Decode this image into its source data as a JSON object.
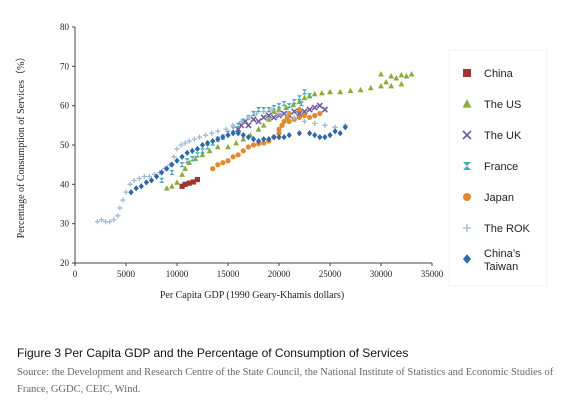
{
  "figure": {
    "caption": "Figure 3 Per Capita GDP and the Percentage of Consumption of Services",
    "source": "Source: the Development and Research Centre of the State Council, the National Institute of Statistics and Economic Studies of France, GGDC, CEIC, Wind."
  },
  "chart_data": {
    "type": "scatter",
    "title": "",
    "xlabel": "Per Capita GDP (1990 Geary-Khamis dollars)",
    "ylabel": "Percentage of Consumption of Services（%）",
    "xlim": [
      0,
      35000
    ],
    "ylim": [
      20,
      80
    ],
    "xticks": [
      "0",
      "5000",
      "10000",
      "15000",
      "20000",
      "25000",
      "30000",
      "35000"
    ],
    "yticks": [
      "20",
      "30",
      "40",
      "50",
      "60",
      "70",
      "80"
    ],
    "grid": false,
    "legend_position": "right",
    "series": [
      {
        "name": "China",
        "marker": "square",
        "color": "#a0352f",
        "points": [
          [
            10500,
            39.5
          ],
          [
            10800,
            40.0
          ],
          [
            11200,
            40.3
          ],
          [
            11600,
            40.6
          ],
          [
            12000,
            41.2
          ]
        ]
      },
      {
        "name": "The US",
        "marker": "triangle",
        "color": "#8cab3c",
        "points": [
          [
            9000,
            39
          ],
          [
            9500,
            39.5
          ],
          [
            10000,
            40.5
          ],
          [
            10500,
            42.5
          ],
          [
            10800,
            44
          ],
          [
            11200,
            45.5
          ],
          [
            11800,
            46.5
          ],
          [
            12500,
            47.5
          ],
          [
            13200,
            48.5
          ],
          [
            14000,
            49.5
          ],
          [
            15000,
            49.5
          ],
          [
            15800,
            50.5
          ],
          [
            16500,
            51.5
          ],
          [
            17200,
            52.5
          ],
          [
            18000,
            54
          ],
          [
            18500,
            55
          ],
          [
            19000,
            56.5
          ],
          [
            19500,
            58.5
          ],
          [
            20000,
            59
          ],
          [
            20700,
            59.5
          ],
          [
            21400,
            60.2
          ],
          [
            22000,
            61
          ],
          [
            22500,
            62
          ],
          [
            23000,
            62.5
          ],
          [
            23500,
            63
          ],
          [
            24200,
            63.2
          ],
          [
            25000,
            63.5
          ],
          [
            26000,
            63.5
          ],
          [
            27000,
            63.8
          ],
          [
            28000,
            64
          ],
          [
            29000,
            64.5
          ],
          [
            30000,
            65
          ],
          [
            30500,
            66
          ],
          [
            31000,
            67.5
          ],
          [
            31500,
            67
          ],
          [
            32000,
            67.8
          ],
          [
            32500,
            67.5
          ],
          [
            33000,
            68
          ],
          [
            30000,
            68
          ],
          [
            31000,
            65
          ],
          [
            32000,
            65.5
          ]
        ]
      },
      {
        "name": "The UK",
        "marker": "x",
        "color": "#6f5a9c",
        "points": [
          [
            16000,
            54
          ],
          [
            16300,
            55
          ],
          [
            16700,
            56
          ],
          [
            17000,
            55
          ],
          [
            17500,
            56.5
          ],
          [
            18000,
            56
          ],
          [
            18500,
            57
          ],
          [
            19000,
            57.5
          ],
          [
            19500,
            57
          ],
          [
            20000,
            57.5
          ],
          [
            20500,
            58
          ],
          [
            21000,
            57.5
          ],
          [
            21500,
            58.5
          ],
          [
            22000,
            58
          ],
          [
            22500,
            58.5
          ],
          [
            23000,
            59
          ],
          [
            23500,
            59.5
          ],
          [
            24000,
            60
          ],
          [
            24500,
            59
          ]
        ]
      },
      {
        "name": "France",
        "marker": "hourglass",
        "color": "#48a9b4",
        "points": [
          [
            8500,
            41
          ],
          [
            9500,
            43
          ],
          [
            10500,
            45
          ],
          [
            11000,
            46
          ],
          [
            11500,
            46.5
          ],
          [
            12000,
            47.5
          ],
          [
            12500,
            48.5
          ],
          [
            13000,
            49.5
          ],
          [
            13500,
            50.5
          ],
          [
            14000,
            51.5
          ],
          [
            14500,
            52
          ],
          [
            15000,
            53
          ],
          [
            15500,
            54
          ],
          [
            16000,
            55
          ],
          [
            16500,
            56
          ],
          [
            17000,
            57
          ],
          [
            17500,
            58
          ],
          [
            18000,
            59
          ],
          [
            18500,
            59
          ],
          [
            19000,
            59
          ],
          [
            19500,
            59.5
          ],
          [
            20000,
            60
          ],
          [
            20500,
            60.5
          ],
          [
            21000,
            60
          ],
          [
            21500,
            61
          ],
          [
            22000,
            62
          ],
          [
            22500,
            63.5
          ],
          [
            23000,
            62.5
          ],
          [
            22200,
            60.5
          ]
        ]
      },
      {
        "name": "Japan",
        "marker": "circle",
        "color": "#e08a2c",
        "points": [
          [
            13500,
            44
          ],
          [
            14000,
            45
          ],
          [
            14500,
            45.5
          ],
          [
            15000,
            46
          ],
          [
            15500,
            47
          ],
          [
            16000,
            47.5
          ],
          [
            16500,
            48.5
          ],
          [
            17000,
            49.5
          ],
          [
            17500,
            50
          ],
          [
            18000,
            50.3
          ],
          [
            18500,
            50.5
          ],
          [
            19000,
            51
          ],
          [
            19500,
            52
          ],
          [
            20000,
            53
          ],
          [
            20300,
            55
          ],
          [
            20500,
            56
          ],
          [
            20800,
            57
          ],
          [
            21000,
            56
          ],
          [
            21500,
            56.5
          ],
          [
            22000,
            57
          ],
          [
            22500,
            57.5
          ],
          [
            23000,
            57
          ],
          [
            23500,
            57.5
          ],
          [
            24000,
            58
          ],
          [
            20000,
            54
          ],
          [
            21000,
            58
          ],
          [
            22000,
            59
          ]
        ]
      },
      {
        "name": "The ROK",
        "marker": "plus",
        "color": "#a2b9d4",
        "points": [
          [
            2200,
            30.5
          ],
          [
            2600,
            31
          ],
          [
            3000,
            30.5
          ],
          [
            3400,
            30.5
          ],
          [
            3800,
            31
          ],
          [
            4200,
            32
          ],
          [
            4400,
            34
          ],
          [
            4700,
            36
          ],
          [
            5000,
            38
          ],
          [
            5400,
            40
          ],
          [
            5800,
            41
          ],
          [
            6300,
            41.5
          ],
          [
            6800,
            42
          ],
          [
            7300,
            42
          ],
          [
            7800,
            42.5
          ],
          [
            8300,
            43
          ],
          [
            8800,
            44
          ],
          [
            9300,
            45
          ],
          [
            9700,
            47
          ],
          [
            10000,
            49
          ],
          [
            10400,
            50
          ],
          [
            10800,
            50.5
          ],
          [
            11200,
            51
          ],
          [
            11700,
            51.5
          ],
          [
            12200,
            52
          ],
          [
            12800,
            52.5
          ],
          [
            13400,
            53
          ],
          [
            14000,
            53.5
          ],
          [
            14800,
            54
          ],
          [
            15500,
            55
          ],
          [
            16300,
            56
          ],
          [
            17000,
            57
          ],
          [
            17800,
            58
          ],
          [
            18500,
            58.5
          ],
          [
            19300,
            59
          ],
          [
            20000,
            58
          ],
          [
            20800,
            58
          ],
          [
            21500,
            57
          ],
          [
            22500,
            56
          ],
          [
            23500,
            55.5
          ],
          [
            24500,
            55
          ],
          [
            25500,
            54.5
          ],
          [
            26500,
            55
          ]
        ]
      },
      {
        "name": "China’s Taiwan",
        "name_lines": [
          "China’s",
          "Taiwan"
        ],
        "marker": "diamond",
        "color": "#2f67a8",
        "points": [
          [
            5500,
            38
          ],
          [
            6000,
            39
          ],
          [
            6500,
            39.5
          ],
          [
            7000,
            40.5
          ],
          [
            7500,
            41
          ],
          [
            8000,
            42
          ],
          [
            8500,
            43
          ],
          [
            9000,
            44
          ],
          [
            9500,
            45
          ],
          [
            10000,
            46
          ],
          [
            10500,
            47
          ],
          [
            11000,
            48
          ],
          [
            11500,
            48.5
          ],
          [
            12000,
            49
          ],
          [
            12500,
            50
          ],
          [
            13000,
            50.5
          ],
          [
            13500,
            51
          ],
          [
            14000,
            51.5
          ],
          [
            14500,
            52
          ],
          [
            15000,
            52.5
          ],
          [
            15500,
            53
          ],
          [
            16000,
            53
          ],
          [
            16500,
            52.5
          ],
          [
            17000,
            52
          ],
          [
            17500,
            51.5
          ],
          [
            18000,
            51
          ],
          [
            18500,
            51.5
          ],
          [
            19000,
            51.5
          ],
          [
            19500,
            52
          ],
          [
            20000,
            52
          ],
          [
            20500,
            52
          ],
          [
            21000,
            52.5
          ],
          [
            22000,
            53
          ],
          [
            23000,
            53
          ],
          [
            23500,
            52.5
          ],
          [
            24000,
            52
          ],
          [
            24500,
            52
          ],
          [
            25000,
            52.5
          ],
          [
            25500,
            53.5
          ],
          [
            26000,
            53
          ],
          [
            26500,
            54.5
          ]
        ]
      }
    ]
  }
}
